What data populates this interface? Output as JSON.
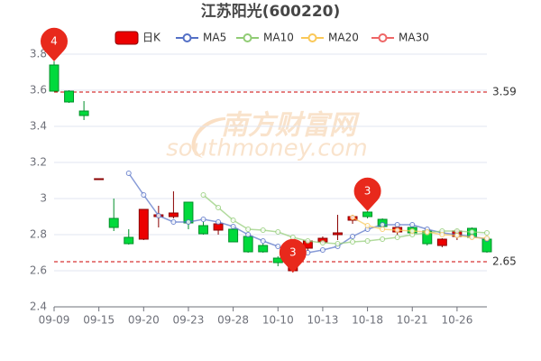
{
  "chart_data": {
    "type": "candlestick",
    "title": "江苏阳光(600220)",
    "categories": [
      "09-09",
      null,
      null,
      "09-15",
      null,
      null,
      "09-20",
      null,
      null,
      "09-23",
      null,
      null,
      "09-28",
      null,
      null,
      "10-10",
      null,
      null,
      "10-13",
      null,
      null,
      "10-18",
      null,
      null,
      "10-21",
      null,
      null,
      "10-26",
      null,
      null
    ],
    "series": [
      {
        "name": "日K",
        "type": "candlestick",
        "up_color": "#ec0000",
        "down_color": "#00da3c",
        "values": [
          [
            3.74,
            3.595,
            3.595,
            3.76
          ],
          [
            3.595,
            3.535,
            3.53,
            3.6
          ],
          [
            3.485,
            3.46,
            3.435,
            3.54
          ],
          [
            3.11,
            3.11,
            3.11,
            3.11
          ],
          [
            2.89,
            2.84,
            2.82,
            3.0
          ],
          [
            2.785,
            2.75,
            2.745,
            2.83
          ],
          [
            2.775,
            2.94,
            2.77,
            2.94
          ],
          [
            2.9,
            2.91,
            2.84,
            2.96
          ],
          [
            2.9,
            2.92,
            2.89,
            3.04
          ],
          [
            2.98,
            2.865,
            2.83,
            2.98
          ],
          [
            2.85,
            2.805,
            2.8,
            2.87
          ],
          [
            2.825,
            2.86,
            2.8,
            2.87
          ],
          [
            2.83,
            2.76,
            2.76,
            2.85
          ],
          [
            2.79,
            2.705,
            2.7,
            2.8
          ],
          [
            2.74,
            2.705,
            2.7,
            2.75
          ],
          [
            2.67,
            2.645,
            2.625,
            2.68
          ],
          [
            2.6,
            2.65,
            2.59,
            2.66
          ],
          [
            2.725,
            2.765,
            2.71,
            2.77
          ],
          [
            2.76,
            2.78,
            2.75,
            2.79
          ],
          [
            2.8,
            2.81,
            2.77,
            2.91
          ],
          [
            2.88,
            2.9,
            2.86,
            2.91
          ],
          [
            2.925,
            2.9,
            2.89,
            2.93
          ],
          [
            2.885,
            2.845,
            2.84,
            2.89
          ],
          [
            2.815,
            2.84,
            2.8,
            2.85
          ],
          [
            2.84,
            2.81,
            2.8,
            2.85
          ],
          [
            2.82,
            2.75,
            2.74,
            2.83
          ],
          [
            2.74,
            2.775,
            2.73,
            2.78
          ],
          [
            2.79,
            2.82,
            2.77,
            2.83
          ],
          [
            2.835,
            2.785,
            2.78,
            2.84
          ],
          [
            2.775,
            2.705,
            2.7,
            2.78
          ]
        ]
      },
      {
        "name": "MA5",
        "type": "line",
        "color": "#5470c6",
        "values": [
          null,
          null,
          null,
          null,
          null,
          3.14,
          3.02,
          2.905,
          2.87,
          2.87,
          2.885,
          2.87,
          2.845,
          2.8,
          2.765,
          2.735,
          2.7,
          2.7,
          2.715,
          2.735,
          2.79,
          2.83,
          2.855,
          2.855,
          2.855,
          2.83,
          2.81,
          2.8,
          2.79,
          2.775
        ]
      },
      {
        "name": "MA10",
        "type": "line",
        "color": "#91cc75",
        "values": [
          null,
          null,
          null,
          null,
          null,
          null,
          null,
          null,
          null,
          null,
          3.02,
          2.95,
          2.88,
          2.83,
          2.825,
          2.815,
          2.785,
          2.765,
          2.755,
          2.75,
          2.76,
          2.765,
          2.775,
          2.785,
          2.8,
          2.81,
          2.82,
          2.82,
          2.815,
          2.81
        ]
      },
      {
        "name": "MA20",
        "type": "line",
        "color": "#fac858",
        "values": [
          null,
          null,
          null,
          null,
          null,
          null,
          null,
          null,
          null,
          null,
          null,
          null,
          null,
          null,
          null,
          null,
          null,
          null,
          null,
          null,
          2.895,
          2.85,
          2.83,
          2.825,
          2.82,
          2.815,
          2.8,
          2.795,
          2.785,
          2.78
        ]
      },
      {
        "name": "MA30",
        "type": "line",
        "color": "#ee6666",
        "values": [
          null,
          null,
          null,
          null,
          null,
          null,
          null,
          null,
          null,
          null,
          null,
          null,
          null,
          null,
          null,
          null,
          null,
          null,
          null,
          null,
          null,
          null,
          null,
          null,
          null,
          null,
          null,
          null,
          null,
          null
        ]
      }
    ],
    "ylim": [
      2.4,
      3.8
    ],
    "yticks": [
      2.4,
      2.6,
      2.8,
      3,
      3.2,
      3.4,
      3.6,
      3.8
    ],
    "grid": true,
    "mark_lines": [
      3.59,
      2.65
    ],
    "mark_points": [
      {
        "label": "4",
        "value": 3.76
      },
      {
        "label": "3",
        "value": 2.59
      },
      {
        "label": "3",
        "value": 2.93
      }
    ],
    "watermark": [
      "南方财富网",
      "southmoney.com"
    ]
  }
}
